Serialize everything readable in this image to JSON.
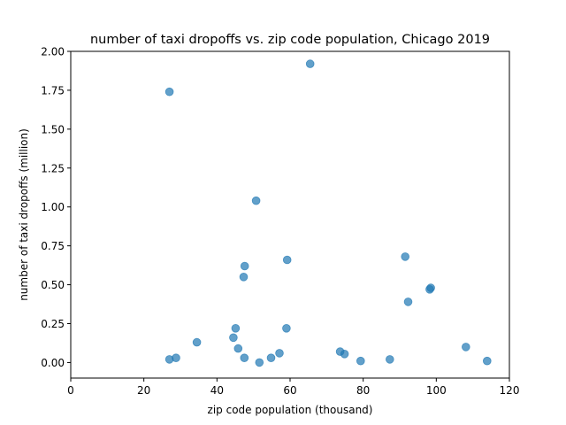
{
  "chart_data": {
    "type": "scatter",
    "title": "number of taxi dropoffs vs. zip code population, Chicago 2019",
    "xlabel": "zip code population (thousand)",
    "ylabel": "number of taxi dropoffs (million)",
    "xlim": [
      0,
      120
    ],
    "ylim": [
      -0.1,
      2.0
    ],
    "xticks": [
      "0",
      "20",
      "40",
      "60",
      "80",
      "100",
      "120"
    ],
    "yticks": [
      "0.00",
      "0.25",
      "0.50",
      "0.75",
      "1.00",
      "1.25",
      "1.50",
      "1.75",
      "2.00"
    ],
    "grid": false,
    "marker_color": "#1f77b4",
    "points": [
      {
        "x": 65.5,
        "y": 1.92
      },
      {
        "x": 27.0,
        "y": 1.74
      },
      {
        "x": 50.7,
        "y": 1.04
      },
      {
        "x": 47.6,
        "y": 0.62
      },
      {
        "x": 59.2,
        "y": 0.66
      },
      {
        "x": 47.3,
        "y": 0.55
      },
      {
        "x": 91.5,
        "y": 0.68
      },
      {
        "x": 98.5,
        "y": 0.48
      },
      {
        "x": 98.2,
        "y": 0.47
      },
      {
        "x": 92.3,
        "y": 0.39
      },
      {
        "x": 45.1,
        "y": 0.22
      },
      {
        "x": 59.0,
        "y": 0.22
      },
      {
        "x": 44.5,
        "y": 0.16
      },
      {
        "x": 34.5,
        "y": 0.13
      },
      {
        "x": 45.8,
        "y": 0.09
      },
      {
        "x": 108.1,
        "y": 0.1
      },
      {
        "x": 73.7,
        "y": 0.07
      },
      {
        "x": 57.1,
        "y": 0.06
      },
      {
        "x": 74.9,
        "y": 0.055
      },
      {
        "x": 27.0,
        "y": 0.02
      },
      {
        "x": 28.8,
        "y": 0.03
      },
      {
        "x": 47.5,
        "y": 0.03
      },
      {
        "x": 54.8,
        "y": 0.03
      },
      {
        "x": 51.6,
        "y": 0.0
      },
      {
        "x": 79.3,
        "y": 0.01
      },
      {
        "x": 87.3,
        "y": 0.02
      },
      {
        "x": 113.9,
        "y": 0.01
      }
    ]
  }
}
